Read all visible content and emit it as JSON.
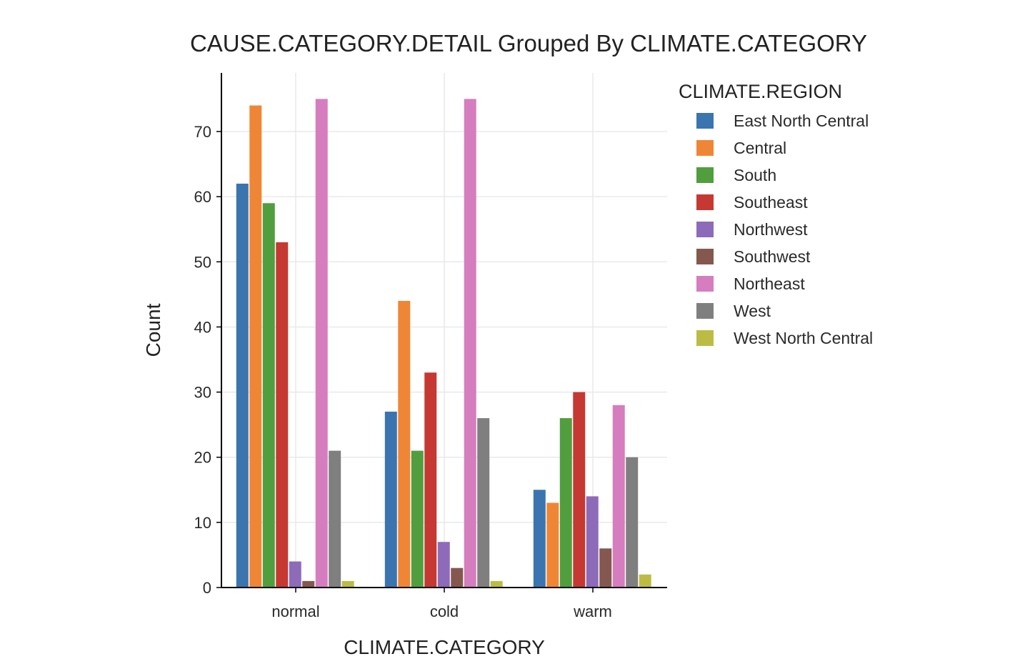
{
  "chart_data": {
    "type": "bar",
    "title": "CAUSE.CATEGORY.DETAIL Grouped By CLIMATE.CATEGORY",
    "xlabel": "CLIMATE.CATEGORY",
    "ylabel": "Count",
    "categories": [
      "normal",
      "cold",
      "warm"
    ],
    "ylim": [
      0,
      79
    ],
    "yticks": [
      0,
      10,
      20,
      30,
      40,
      50,
      60,
      70
    ],
    "grid": true,
    "legend_title": "CLIMATE.REGION",
    "legend_position": "right",
    "series": [
      {
        "name": "East North Central",
        "color": "#3a75af",
        "values": [
          62,
          27,
          15
        ]
      },
      {
        "name": "Central",
        "color": "#ef8636",
        "values": [
          74,
          44,
          13
        ]
      },
      {
        "name": "South",
        "color": "#519e3e",
        "values": [
          59,
          21,
          26
        ]
      },
      {
        "name": "Southeast",
        "color": "#c53932",
        "values": [
          53,
          33,
          30
        ]
      },
      {
        "name": "Northwest",
        "color": "#8d6bb8",
        "values": [
          4,
          7,
          14
        ]
      },
      {
        "name": "Southwest",
        "color": "#84584e",
        "values": [
          1,
          3,
          6
        ]
      },
      {
        "name": "Northeast",
        "color": "#d57dbe",
        "values": [
          75,
          75,
          28
        ]
      },
      {
        "name": "West",
        "color": "#7f7f7f",
        "values": [
          21,
          26,
          20
        ]
      },
      {
        "name": "West North Central",
        "color": "#bcbc45",
        "values": [
          1,
          1,
          2
        ]
      }
    ]
  }
}
